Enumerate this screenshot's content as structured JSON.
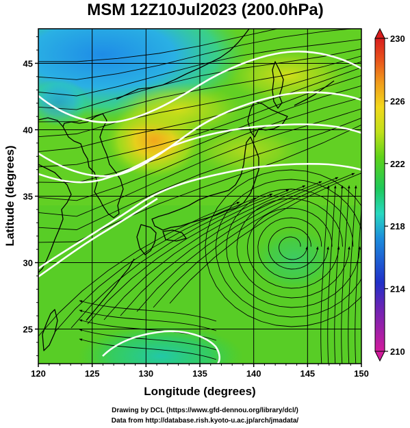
{
  "title": "MSM 12Z10Jul2023 (200.0hPa)",
  "xlabel": "Longitude (degrees)",
  "ylabel": "Latitude  (degrees)",
  "x_ticks": [
    "120",
    "125",
    "130",
    "135",
    "140",
    "145",
    "150"
  ],
  "y_ticks": [
    "25",
    "30",
    "35",
    "40",
    "45"
  ],
  "colorbar": {
    "ticks": [
      "210",
      "214",
      "218",
      "222",
      "226",
      "230"
    ],
    "min": 210,
    "max": 230
  },
  "credits": {
    "line1": "Drawing by DCL (https://www.gfd-dennou.org/library/dcl/)",
    "line2": "Data from http://database.rish.kyoto-u.ac.jp/arch/jmadata/"
  },
  "chart_data": {
    "type": "heatmap",
    "title": "MSM 12Z10Jul2023 (200.0hPa)",
    "xlabel": "Longitude (degrees)",
    "ylabel": "Latitude  (degrees)",
    "xlim": [
      120,
      150
    ],
    "ylim": [
      22.4,
      47.6
    ],
    "grid": true,
    "colorbar_range": [
      210,
      230
    ],
    "colorbar_ticks": [
      210,
      214,
      218,
      222,
      226,
      230
    ],
    "colors": {
      "warm_core": "#f0c020",
      "cold_north": "#2aa8e8",
      "field_mid": "#6ad21e",
      "contour": "#ffffff"
    },
    "features": {
      "cyclonic_vortex_center": [
        143.5,
        31.2
      ],
      "warm_max_center": [
        130.5,
        40.0
      ]
    }
  }
}
